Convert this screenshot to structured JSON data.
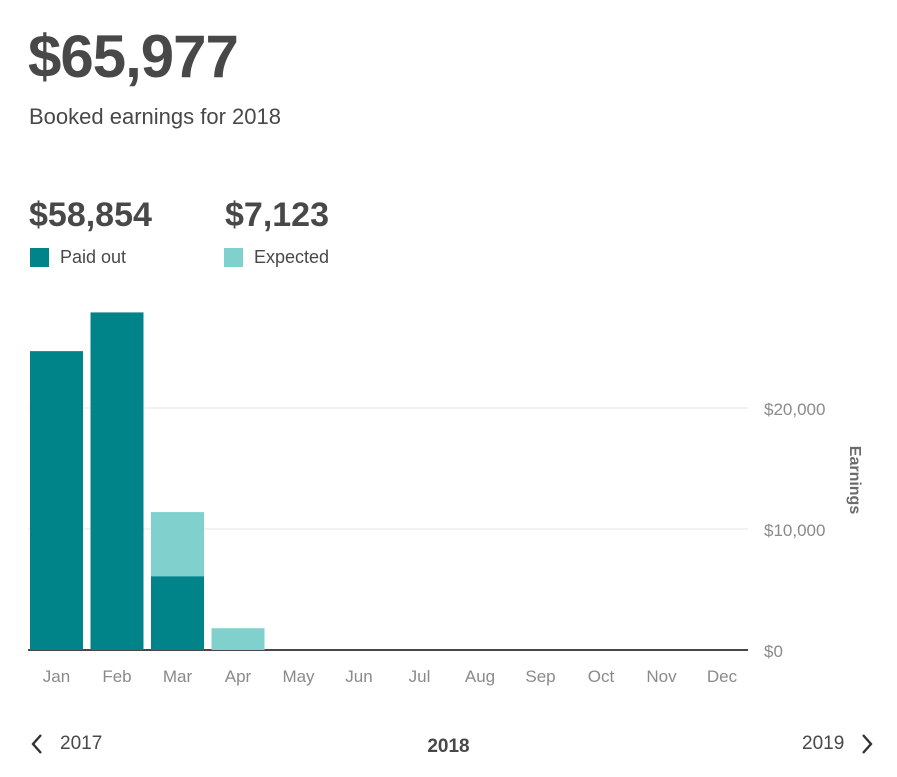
{
  "header": {
    "total": "$65,977",
    "subtitle": "Booked earnings for 2018"
  },
  "stats": {
    "paid_out": {
      "amount": "$58,854",
      "label": "Paid out",
      "color": "#008489"
    },
    "expected": {
      "amount": "$7,123",
      "label": "Expected",
      "color": "#80d1cd"
    }
  },
  "nav": {
    "prev_year": "2017",
    "current_year": "2018",
    "next_year": "2019"
  },
  "chart_data": {
    "type": "bar",
    "stacked": true,
    "title": "",
    "xlabel": "",
    "ylabel": "Earnings",
    "categories": [
      "Jan",
      "Feb",
      "Mar",
      "Apr",
      "May",
      "Jun",
      "Jul",
      "Aug",
      "Sep",
      "Oct",
      "Nov",
      "Dec"
    ],
    "series": [
      {
        "name": "Paid out",
        "color": "#008489",
        "values": [
          24700,
          27900,
          6100,
          0,
          0,
          0,
          0,
          0,
          0,
          0,
          0,
          0
        ]
      },
      {
        "name": "Expected",
        "color": "#80d1cd",
        "values": [
          0,
          0,
          5300,
          1800,
          0,
          0,
          0,
          0,
          0,
          0,
          0,
          0
        ]
      }
    ],
    "yticks": [
      {
        "value": 0,
        "label": "$0"
      },
      {
        "value": 10000,
        "label": "$10,000"
      },
      {
        "value": 20000,
        "label": "$20,000"
      }
    ],
    "ylim": [
      0,
      28000
    ],
    "grid": true,
    "axis_position": "right"
  }
}
